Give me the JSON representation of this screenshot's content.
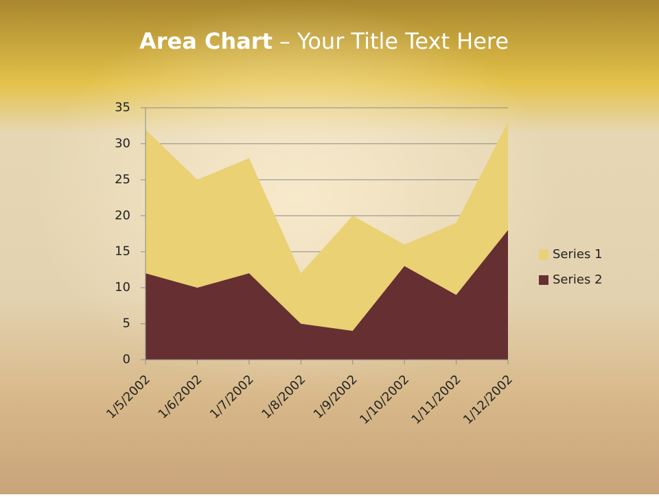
{
  "chart_data": {
    "type": "area",
    "title": [
      "Area Chart",
      "– Your Title Text Here"
    ],
    "x": [
      "1/5/2002",
      "1/6/2002",
      "1/7/2002",
      "1/8/2002",
      "1/9/2002",
      "1/10/2002",
      "1/11/2002",
      "1/12/2002"
    ],
    "series": [
      {
        "name": "Series 1",
        "color": "#e9d174",
        "values": [
          32,
          25,
          28,
          12,
          20,
          16,
          19,
          33
        ]
      },
      {
        "name": "Series 2",
        "color": "#662f31",
        "values": [
          12,
          10,
          12,
          5,
          4,
          13,
          9,
          18
        ]
      }
    ],
    "ylim": [
      0,
      35
    ],
    "yticks": [
      0,
      5,
      10,
      15,
      20,
      25,
      30,
      35
    ],
    "grid": true,
    "legend": "right"
  }
}
